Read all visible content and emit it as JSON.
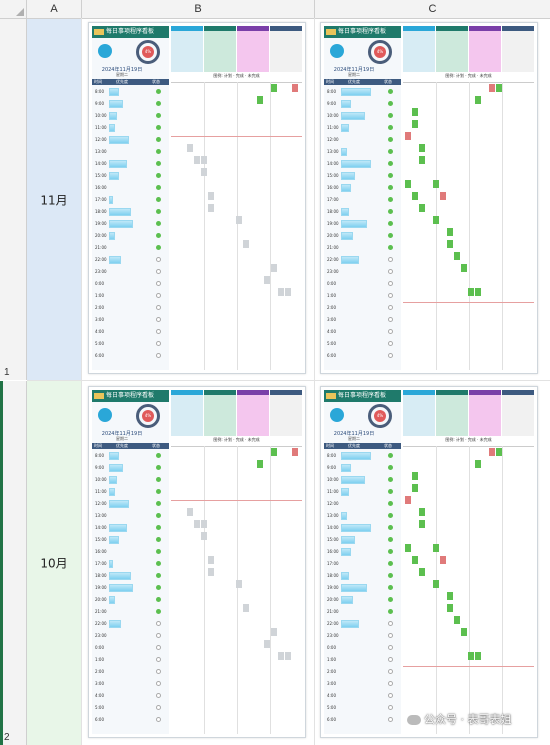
{
  "spreadsheet": {
    "columns": [
      "A",
      "B",
      "C"
    ],
    "rows": [
      {
        "number": "1",
        "label": "11月"
      },
      {
        "number": "2",
        "label": "10月"
      }
    ]
  },
  "board": {
    "title": "每日事项程序看板",
    "date_text": "2024年11月19日",
    "weekday": "星期二",
    "ring_text": "4%",
    "table_headers": [
      "时间",
      "优先度",
      "状态"
    ],
    "legend": "图例: 计划 · 完成 · 未完成",
    "times": [
      "8:00",
      "9:00",
      "10:00",
      "11:00",
      "12:00",
      "13:00",
      "14:00",
      "15:00",
      "16:00",
      "17:00",
      "18:00",
      "19:00",
      "20:00",
      "21:00",
      "22:00",
      "23:00",
      "0:00",
      "1:00",
      "2:00",
      "3:00",
      "4:00",
      "5:00",
      "6:00"
    ],
    "colors": {
      "title_bg": "#1f7a6b",
      "header_bar": "#3d5a80",
      "plan": "#d0d4d8",
      "done": "#5cbf4f",
      "undone": "#e07a7a",
      "pink_col": "#f4c6ee",
      "green_col": "#cde9dc",
      "blue_col": "#d7ecf4"
    }
  },
  "watermark": "公众号 · 表哥表姐",
  "colors": {
    "row_select": "#217346",
    "a1_bg": "#dce8f6",
    "a2_bg": "#e8f6e8"
  }
}
